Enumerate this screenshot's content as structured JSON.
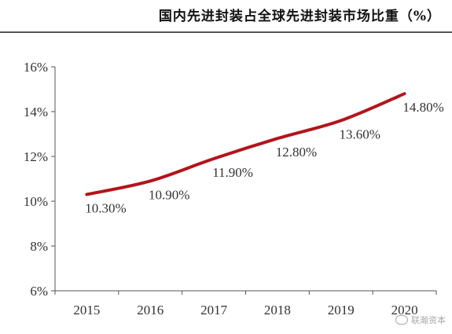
{
  "title": "国内先进封装占全球先进封装市场比重（%）",
  "watermark": "联瀚资本",
  "chart_data": {
    "type": "line",
    "title": "国内先进封装占全球先进封装市场比重（%）",
    "x": [
      "2015",
      "2016",
      "2017",
      "2018",
      "2019",
      "2020"
    ],
    "series": [
      {
        "values": [
          10.3,
          10.9,
          11.9,
          12.8,
          13.6,
          14.8
        ],
        "labels": [
          "10.30%",
          "10.90%",
          "11.90%",
          "12.80%",
          "13.60%",
          "14.80%"
        ]
      }
    ],
    "ylim": [
      6,
      16
    ],
    "yticks": [
      6,
      8,
      10,
      12,
      14,
      16
    ],
    "ytick_labels": [
      "6%",
      "8%",
      "10%",
      "12%",
      "14%",
      "16%"
    ],
    "xlabel": "",
    "ylabel": "",
    "grid": false,
    "legend": "none",
    "line_color": "#b3141b"
  }
}
